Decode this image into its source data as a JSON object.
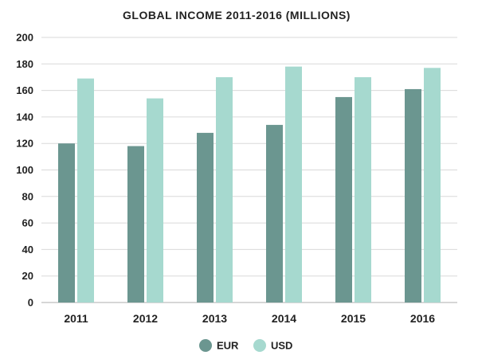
{
  "chart_data": {
    "type": "bar",
    "title": "GLOBAL INCOME 2011-2016 (MILLIONS)",
    "xlabel": "",
    "ylabel": "",
    "categories": [
      "2011",
      "2012",
      "2013",
      "2014",
      "2015",
      "2016"
    ],
    "series": [
      {
        "name": "EUR",
        "color": "#6b9690",
        "values": [
          120,
          118,
          128,
          134,
          155,
          161
        ]
      },
      {
        "name": "USD",
        "color": "#a6d9cf",
        "values": [
          169,
          154,
          170,
          178,
          170,
          177
        ]
      }
    ],
    "ylim": [
      0,
      200
    ],
    "yticks": [
      0,
      20,
      40,
      60,
      80,
      100,
      120,
      140,
      160,
      180,
      200
    ],
    "grid": true,
    "legend_position": "bottom-center"
  }
}
